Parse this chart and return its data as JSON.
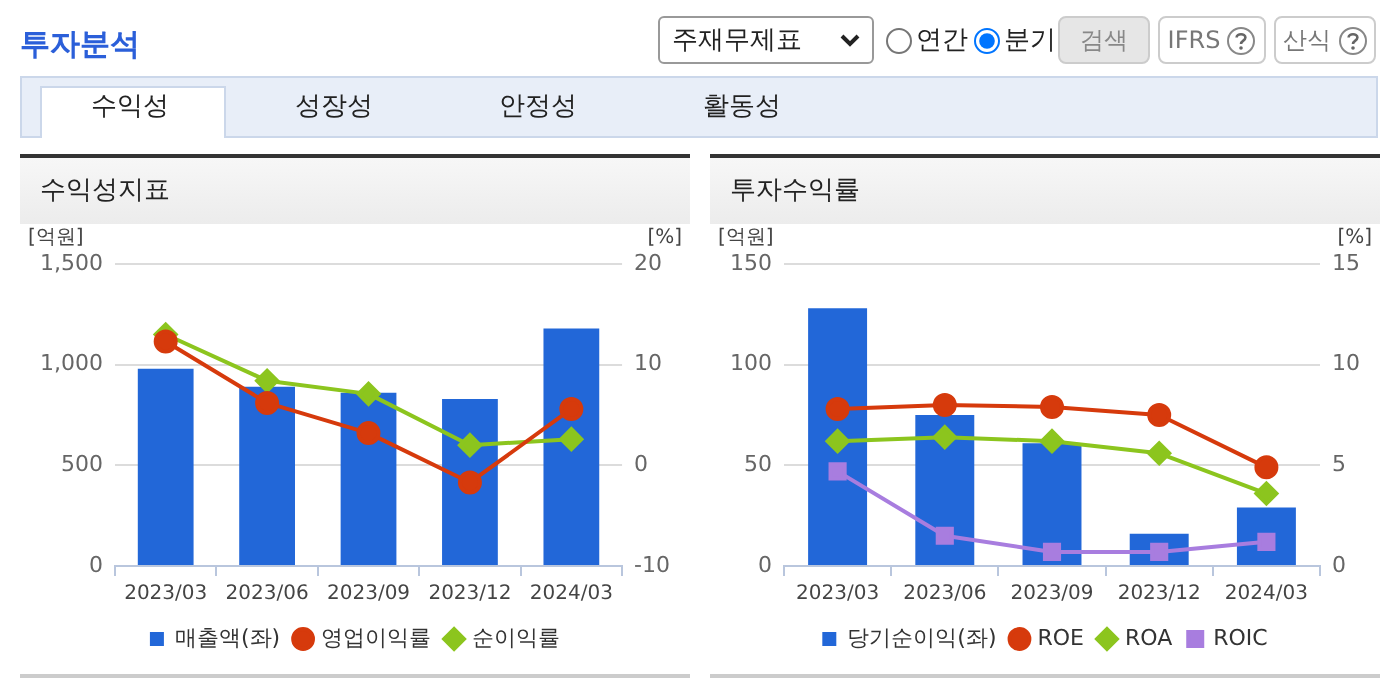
{
  "chart_data": [
    {
      "type": "other",
      "title": "투자분석",
      "annotations": [
        "주재무제표",
        "연간",
        "분기",
        "검색",
        "IFRS",
        "산식",
        "수익성",
        "성장성",
        "안정성",
        "활동성"
      ]
    },
    {
      "type": "bar",
      "title": "수익성지표",
      "ylabel": "[억원]",
      "y2label": "[%]",
      "categories": [
        "2023/03",
        "2023/06",
        "2023/09",
        "2023/12",
        "2024/03"
      ],
      "series": [
        {
          "name": "매출액(좌)",
          "type": "bar",
          "color": "#2267d8",
          "values": [
            980,
            890,
            860,
            830,
            1180
          ]
        },
        {
          "name": "영업이익률",
          "type": "line",
          "axis": "y2",
          "marker": "circle",
          "color": "#d63a0c",
          "values": [
            12.3,
            6.2,
            3.2,
            -1.7,
            5.6
          ]
        },
        {
          "name": "순이익률",
          "type": "line",
          "axis": "y2",
          "marker": "diamond",
          "color": "#8cc51e",
          "values": [
            13.0,
            8.4,
            7.1,
            2.0,
            2.6
          ]
        }
      ],
      "ylim": [
        0,
        1500
      ],
      "yticks": [
        0,
        500,
        {
          "value": 1000,
          "label": "1,000"
        },
        {
          "value": 1500,
          "label": "1,500"
        }
      ],
      "y2lim": [
        -10,
        20
      ],
      "y2ticks": [
        -10,
        0,
        10,
        20
      ],
      "grid": "y",
      "legend": "bottom"
    },
    {
      "type": "bar",
      "title": "투자수익률",
      "ylabel": "[억원]",
      "y2label": "[%]",
      "categories": [
        "2023/03",
        "2023/06",
        "2023/09",
        "2023/12",
        "2024/03"
      ],
      "series": [
        {
          "name": "당기순이익(좌)",
          "type": "bar",
          "color": "#2267d8",
          "values": [
            128,
            75,
            61,
            16,
            29
          ]
        },
        {
          "name": "ROE",
          "type": "line",
          "axis": "y2",
          "marker": "circle",
          "color": "#d63a0c",
          "values": [
            7.8,
            8.0,
            7.9,
            7.5,
            4.9
          ]
        },
        {
          "name": "ROA",
          "type": "line",
          "axis": "y2",
          "marker": "diamond",
          "color": "#8cc51e",
          "values": [
            6.2,
            6.4,
            6.2,
            5.6,
            3.6
          ]
        },
        {
          "name": "ROIC",
          "type": "line",
          "axis": "y2",
          "marker": "square",
          "color": "#a87ddf",
          "values": [
            4.7,
            1.5,
            0.7,
            0.7,
            1.2
          ]
        }
      ],
      "ylim": [
        0,
        150
      ],
      "yticks": [
        0,
        50,
        100,
        150
      ],
      "y2lim": [
        0,
        15
      ],
      "y2ticks": [
        0,
        5,
        10,
        15
      ],
      "grid": "y",
      "legend": "bottom"
    }
  ]
}
